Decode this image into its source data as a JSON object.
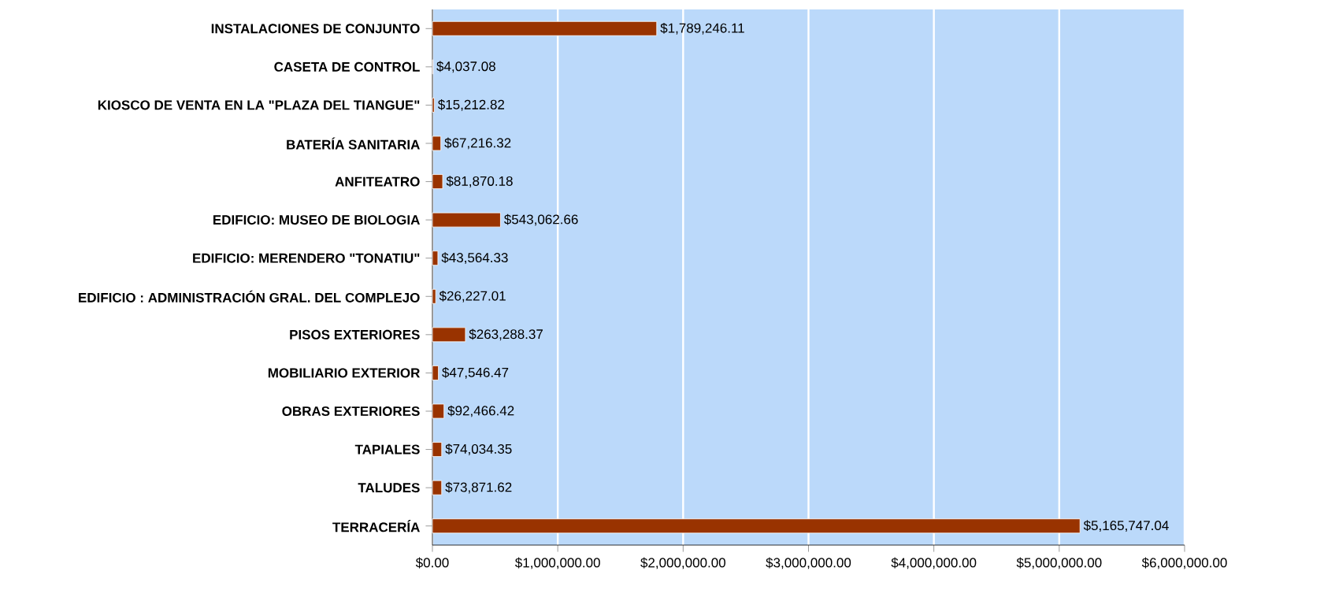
{
  "chart_data": {
    "type": "bar",
    "orientation": "horizontal",
    "categories": [
      "INSTALACIONES DE CONJUNTO",
      "CASETA DE CONTROL",
      "KIOSCO DE VENTA EN LA \"PLAZA DEL TIANGUE\"",
      "BATERÍA SANITARIA",
      "ANFITEATRO",
      "EDIFICIO: MUSEO DE BIOLOGIA",
      "EDIFICIO: MERENDERO \"TONATIU\"",
      "EDIFICIO : ADMINISTRACIÓN GRAL. DEL COMPLEJO",
      "PISOS EXTERIORES",
      "MOBILIARIO EXTERIOR",
      "OBRAS EXTERIORES",
      "TAPIALES",
      "TALUDES",
      "TERRACERÍA"
    ],
    "values": [
      1789246.11,
      4037.08,
      15212.82,
      67216.32,
      81870.18,
      543062.66,
      43564.33,
      26227.01,
      263288.37,
      47546.47,
      92466.42,
      74034.35,
      73871.62,
      5165747.04
    ],
    "value_labels": [
      "$1,789,246.11",
      "$4,037.08",
      "$15,212.82",
      "$67,216.32",
      "$81,870.18",
      "$543,062.66",
      "$43,564.33",
      "$26,227.01",
      "$263,288.37",
      "$47,546.47",
      "$92,466.42",
      "$74,034.35",
      "$73,871.62",
      "$5,165,747.04"
    ],
    "color": "#993300",
    "xlim": [
      0,
      6000000
    ],
    "xticks": [
      {
        "value": 0,
        "label": "$0.00"
      },
      {
        "value": 1000000,
        "label": "$1,000,000.00"
      },
      {
        "value": 2000000,
        "label": "$2,000,000.00"
      },
      {
        "value": 3000000,
        "label": "$3,000,000.00"
      },
      {
        "value": 4000000,
        "label": "$4,000,000.00"
      },
      {
        "value": 5000000,
        "label": "$5,000,000.00"
      },
      {
        "value": 6000000,
        "label": "$6,000,000.00"
      }
    ],
    "grid": "x"
  }
}
